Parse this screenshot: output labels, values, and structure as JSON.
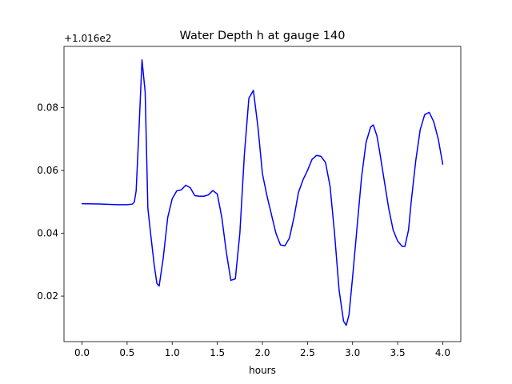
{
  "chart_data": {
    "type": "line",
    "title": "Water Depth h at gauge 140",
    "xlabel": "hours",
    "ylabel": "",
    "y_offset_label": "+1.016e2",
    "xlim": [
      -0.2,
      4.2
    ],
    "ylim": [
      0.0055,
      0.0995
    ],
    "x_ticks": [
      0.0,
      0.5,
      1.0,
      1.5,
      2.0,
      2.5,
      3.0,
      3.5,
      4.0
    ],
    "x_tick_labels": [
      "0.0",
      "0.5",
      "1.0",
      "1.5",
      "2.0",
      "2.5",
      "3.0",
      "3.5",
      "4.0"
    ],
    "y_ticks": [
      0.02,
      0.04,
      0.06,
      0.08
    ],
    "y_tick_labels": [
      "0.02",
      "0.04",
      "0.06",
      "0.08"
    ],
    "grid": false,
    "legend": "none",
    "series": [
      {
        "color": "#0000ff",
        "x": [
          0.0,
          0.2,
          0.4,
          0.5,
          0.56,
          0.58,
          0.6,
          0.63,
          0.665,
          0.7,
          0.73,
          0.76,
          0.8,
          0.83,
          0.855,
          0.9,
          0.95,
          1.0,
          1.05,
          1.1,
          1.15,
          1.2,
          1.25,
          1.3,
          1.35,
          1.4,
          1.45,
          1.5,
          1.55,
          1.6,
          1.65,
          1.7,
          1.75,
          1.8,
          1.85,
          1.9,
          1.95,
          2.0,
          2.05,
          2.1,
          2.15,
          2.2,
          2.25,
          2.3,
          2.35,
          2.4,
          2.45,
          2.5,
          2.55,
          2.6,
          2.65,
          2.7,
          2.75,
          2.8,
          2.85,
          2.9,
          2.93,
          2.96,
          3.0,
          3.05,
          3.1,
          3.15,
          3.2,
          3.23,
          3.27,
          3.3,
          3.35,
          3.4,
          3.45,
          3.5,
          3.55,
          3.58,
          3.62,
          3.65,
          3.7,
          3.75,
          3.8,
          3.85,
          3.9,
          3.95,
          4.0
        ],
        "y": [
          0.0494,
          0.0493,
          0.0491,
          0.0491,
          0.0493,
          0.05,
          0.0535,
          0.072,
          0.0952,
          0.085,
          0.048,
          0.04,
          0.03,
          0.024,
          0.0232,
          0.032,
          0.045,
          0.051,
          0.0535,
          0.0538,
          0.0553,
          0.0545,
          0.052,
          0.0518,
          0.0518,
          0.0522,
          0.0536,
          0.0525,
          0.045,
          0.034,
          0.025,
          0.0255,
          0.04,
          0.065,
          0.083,
          0.0855,
          0.074,
          0.059,
          0.052,
          0.046,
          0.04,
          0.0363,
          0.036,
          0.0385,
          0.045,
          0.053,
          0.057,
          0.06,
          0.0635,
          0.0648,
          0.0645,
          0.0625,
          0.055,
          0.04,
          0.022,
          0.012,
          0.0107,
          0.014,
          0.026,
          0.042,
          0.058,
          0.069,
          0.0738,
          0.0745,
          0.071,
          0.066,
          0.057,
          0.048,
          0.041,
          0.0375,
          0.0358,
          0.0358,
          0.041,
          0.05,
          0.063,
          0.073,
          0.0778,
          0.0785,
          0.0755,
          0.07,
          0.062
        ]
      }
    ]
  }
}
